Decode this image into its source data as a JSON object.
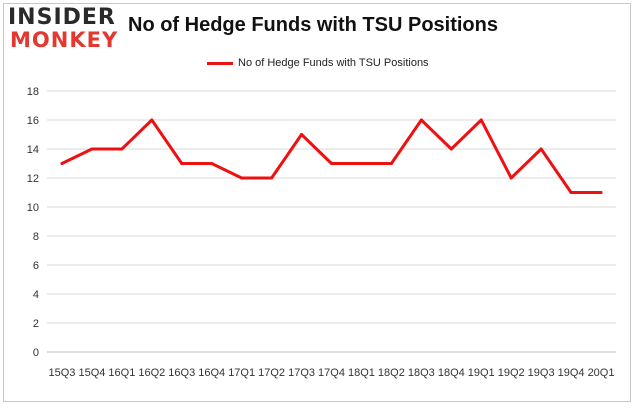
{
  "logo": {
    "line1": "INSIDER",
    "line2": "MONKEY"
  },
  "chart_data": {
    "type": "line",
    "title": "No of Hedge Funds with TSU Positions",
    "xlabel": "",
    "ylabel": "",
    "categories": [
      "15Q3",
      "15Q4",
      "16Q1",
      "16Q2",
      "16Q3",
      "16Q4",
      "17Q1",
      "17Q2",
      "17Q3",
      "17Q4",
      "18Q1",
      "18Q2",
      "18Q3",
      "18Q4",
      "19Q1",
      "19Q2",
      "19Q3",
      "19Q4",
      "20Q1"
    ],
    "series": [
      {
        "name": "No of Hedge Funds with TSU Positions",
        "values": [
          13,
          14,
          14,
          16,
          13,
          13,
          12,
          12,
          15,
          13,
          13,
          13,
          16,
          14,
          16,
          12,
          14,
          11,
          11
        ],
        "color": "#ee1111"
      }
    ],
    "ylim": [
      0,
      18
    ],
    "yticks": [
      0,
      2,
      4,
      6,
      8,
      10,
      12,
      14,
      16,
      18
    ],
    "grid": "horizontal",
    "legend_position": "top-center",
    "colors": {
      "series": "#ee1111",
      "grid": "#d9d9d9",
      "axis_text": "#333333"
    }
  }
}
